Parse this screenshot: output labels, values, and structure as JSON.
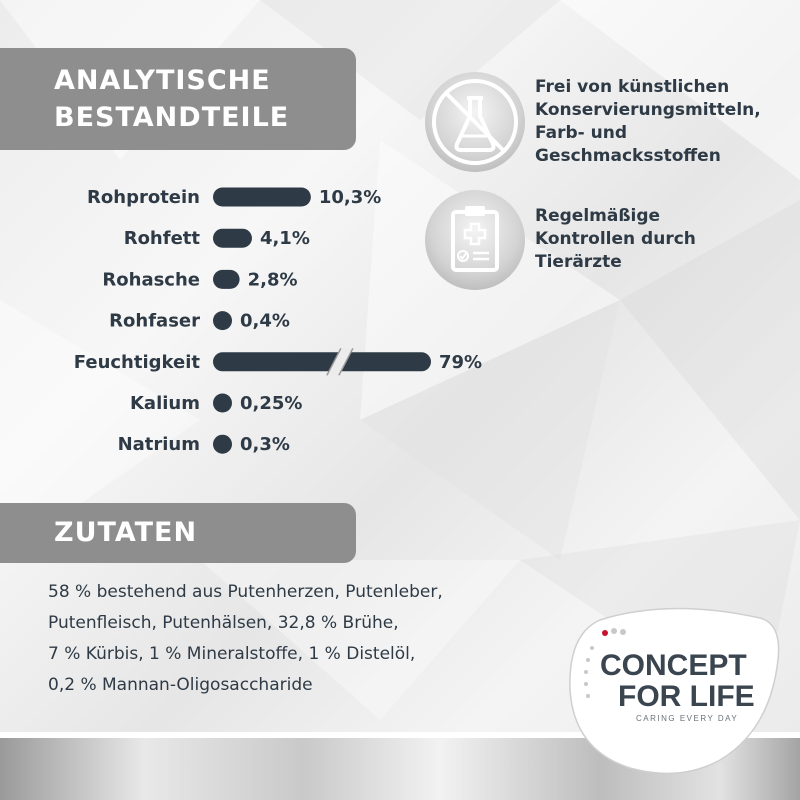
{
  "headings": {
    "analytics_line1": "ANALYTISCHE",
    "analytics_line2": "BESTANDTEILE",
    "ingredients": "ZUTATEN"
  },
  "chart_data": {
    "type": "bar",
    "orientation": "horizontal",
    "title": "ANALYTISCHE BESTANDTEILE",
    "unit": "%",
    "categories": [
      "Rohprotein",
      "Rohfett",
      "Rohasche",
      "Rohfaser",
      "Feuchtigkeit",
      "Kalium",
      "Natrium"
    ],
    "values": [
      10.3,
      4.1,
      2.8,
      0.4,
      79,
      0.25,
      0.3
    ],
    "value_labels": [
      "10,3%",
      "4,1%",
      "2,8%",
      "0,4%",
      "79%",
      "0,25%",
      "0,3%"
    ],
    "broken_axis_categories": [
      "Feuchtigkeit"
    ],
    "bar_color": "#2e3a45"
  },
  "features": [
    {
      "icon": "no-chemicals-flask-icon",
      "text": "Frei von künstlichen\nKonservierungsmitteln,\nFarb- und\nGeschmacksstoffen"
    },
    {
      "icon": "veterinary-clipboard-icon",
      "text": "Regelmäßige\nKontrollen durch\nTierärzte"
    }
  ],
  "ingredients_text": "58 % bestehend aus Putenherzen, Putenleber,\nPutenfleisch, Putenhälsen, 32,8 % Brühe,\n7 % Kürbis, 1 % Mineralstoffe, 1 % Distelöl,\n0,2 % Mannan-Oligosaccharide",
  "logo": {
    "line1": "CONCEPT",
    "line2": "FOR LIFE",
    "tagline": "CARING EVERY DAY"
  },
  "colors": {
    "text_dark": "#2e3a45",
    "heading_bg": "#8e8e8e",
    "logo_dot": "#c8102e"
  }
}
